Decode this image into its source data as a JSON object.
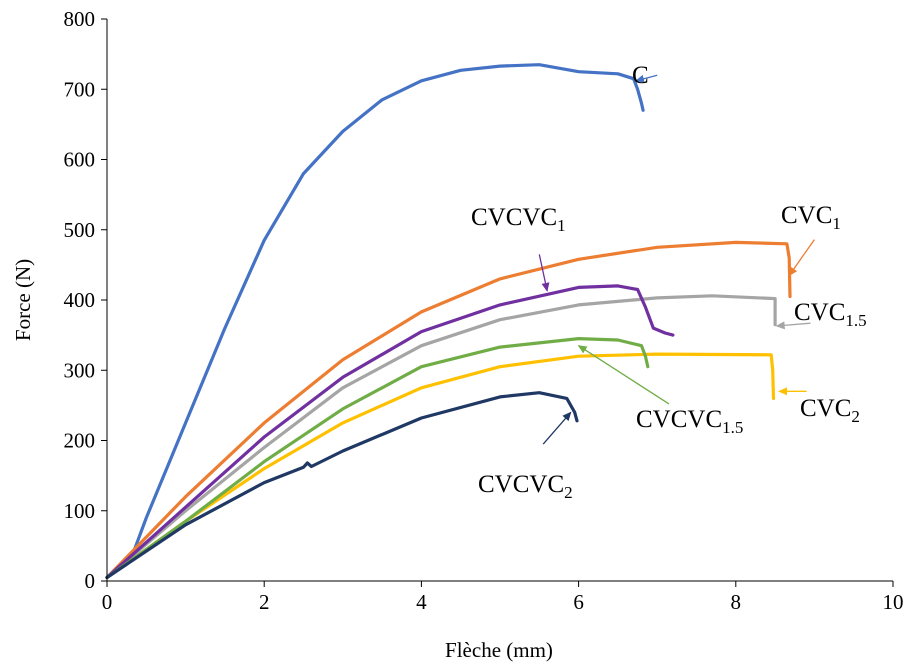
{
  "chart_data": {
    "type": "line",
    "xlabel": "Flèche (mm)",
    "ylabel": "Force (N)",
    "xlim": [
      0,
      10
    ],
    "ylim": [
      0,
      800
    ],
    "x_ticks": [
      "0",
      "2",
      "4",
      "6",
      "8",
      "10"
    ],
    "y_ticks": [
      "0",
      "100",
      "200",
      "300",
      "400",
      "500",
      "600",
      "700",
      "800"
    ],
    "grid": false,
    "legend": "none (curves labelled directly with arrows)",
    "series": [
      {
        "id": "C",
        "label_main": "C",
        "label_sub": "",
        "label_color": "#000000",
        "color": "#4472C4",
        "points": [
          [
            0,
            5
          ],
          [
            0.3,
            30
          ],
          [
            0.5,
            90
          ],
          [
            1,
            225
          ],
          [
            1.5,
            360
          ],
          [
            2,
            485
          ],
          [
            2.5,
            580
          ],
          [
            3,
            640
          ],
          [
            3.5,
            685
          ],
          [
            4,
            712
          ],
          [
            4.5,
            727
          ],
          [
            5,
            733
          ],
          [
            5.5,
            735
          ],
          [
            6,
            725
          ],
          [
            6.5,
            722
          ],
          [
            6.7,
            715
          ],
          [
            6.75,
            700
          ],
          [
            6.8,
            680
          ],
          [
            6.82,
            670
          ]
        ],
        "arrow_tip": [
          6.73,
          712
        ],
        "arrow_tail": [
          7.0,
          720
        ]
      },
      {
        "id": "CVC1",
        "label_main": "CVC",
        "label_sub": "1",
        "label_color": "#000000",
        "color": "#ED7D31",
        "points": [
          [
            0,
            5
          ],
          [
            1,
            120
          ],
          [
            2,
            225
          ],
          [
            3,
            315
          ],
          [
            4,
            383
          ],
          [
            5,
            430
          ],
          [
            6,
            458
          ],
          [
            7,
            475
          ],
          [
            8,
            482
          ],
          [
            8.65,
            480
          ],
          [
            8.68,
            460
          ],
          [
            8.69,
            405
          ]
        ],
        "arrow_tip": [
          8.68,
          435
        ],
        "arrow_tail": [
          9.0,
          486
        ]
      },
      {
        "id": "CVC1_5",
        "label_main": "CVC",
        "label_sub": "1.5",
        "label_color": "#000000",
        "color": "#A5A5A5",
        "points": [
          [
            0,
            5
          ],
          [
            1,
            100
          ],
          [
            2,
            190
          ],
          [
            3,
            275
          ],
          [
            4,
            335
          ],
          [
            5,
            372
          ],
          [
            6,
            393
          ],
          [
            7,
            403
          ],
          [
            7.7,
            406
          ],
          [
            8.5,
            402
          ],
          [
            8.5,
            365
          ]
        ],
        "arrow_tip": [
          8.52,
          363
        ],
        "arrow_tail": [
          8.95,
          367
        ]
      },
      {
        "id": "CVC2",
        "label_main": "CVC",
        "label_sub": "2",
        "label_color": "#FF0000",
        "color": "#FFC000",
        "points": [
          [
            0,
            5
          ],
          [
            1,
            85
          ],
          [
            2,
            160
          ],
          [
            3,
            225
          ],
          [
            4,
            275
          ],
          [
            5,
            305
          ],
          [
            6,
            320
          ],
          [
            7,
            323
          ],
          [
            8.45,
            322
          ],
          [
            8.47,
            300
          ],
          [
            8.48,
            260
          ]
        ],
        "arrow_tip": [
          8.55,
          270
        ],
        "arrow_tail": [
          8.9,
          270
        ]
      },
      {
        "id": "CVCVC1",
        "label_main": "CVCVC",
        "label_sub": "1",
        "label_color": "#000000",
        "color": "#7030A0",
        "points": [
          [
            0,
            5
          ],
          [
            1,
            105
          ],
          [
            2,
            205
          ],
          [
            3,
            290
          ],
          [
            4,
            355
          ],
          [
            5,
            393
          ],
          [
            6,
            418
          ],
          [
            6.5,
            420
          ],
          [
            6.75,
            415
          ],
          [
            6.85,
            390
          ],
          [
            6.95,
            360
          ],
          [
            7.1,
            353
          ],
          [
            7.2,
            350
          ]
        ],
        "arrow_tip": [
          5.6,
          413
        ],
        "arrow_tail": [
          5.5,
          465
        ]
      },
      {
        "id": "CVCVC1_5",
        "label_main": "CVCVC",
        "label_sub": "1.5",
        "label_color": "#000000",
        "color": "#70AD47",
        "points": [
          [
            0,
            5
          ],
          [
            1,
            85
          ],
          [
            2,
            170
          ],
          [
            3,
            245
          ],
          [
            4,
            305
          ],
          [
            5,
            333
          ],
          [
            6,
            345
          ],
          [
            6.5,
            343
          ],
          [
            6.8,
            335
          ],
          [
            6.85,
            320
          ],
          [
            6.88,
            305
          ]
        ],
        "arrow_tip": [
          6.0,
          335
        ],
        "arrow_tail": [
          7.15,
          252
        ]
      },
      {
        "id": "CVCVC2",
        "label_main": "CVCVC",
        "label_sub": "2",
        "label_color": "#000000",
        "color": "#203864",
        "points": [
          [
            0,
            5
          ],
          [
            1,
            80
          ],
          [
            2,
            140
          ],
          [
            2.5,
            162
          ],
          [
            2.55,
            168
          ],
          [
            2.6,
            163
          ],
          [
            3,
            185
          ],
          [
            4,
            232
          ],
          [
            5,
            262
          ],
          [
            5.5,
            268
          ],
          [
            5.85,
            260
          ],
          [
            5.95,
            240
          ],
          [
            5.98,
            228
          ]
        ],
        "arrow_tip": [
          5.9,
          240
        ],
        "arrow_tail": [
          5.55,
          195
        ]
      }
    ]
  }
}
